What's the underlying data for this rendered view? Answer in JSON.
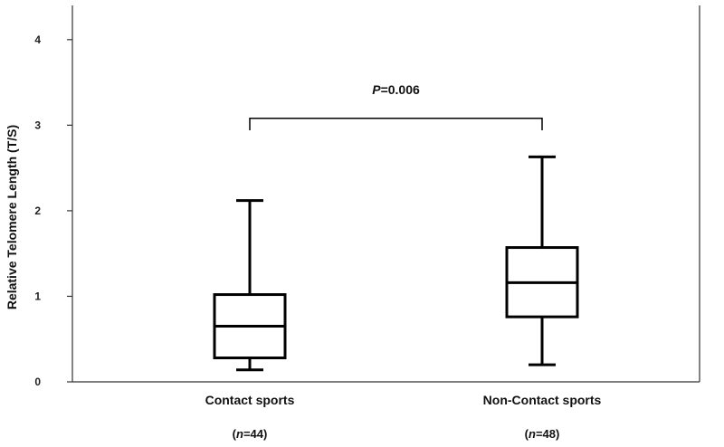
{
  "chart_data": {
    "type": "boxplot",
    "title": "",
    "xlabel": "",
    "ylabel": "Relative Telomere Length (T/S)",
    "ylim": [
      0,
      4.4
    ],
    "yticks": [
      "0",
      "1",
      "2",
      "3",
      "4"
    ],
    "grid": false,
    "groups": [
      {
        "label": "Contact sports",
        "n_prefix": "(",
        "n_symbol": "n",
        "n_value": "=44)",
        "whisker_low": 0.14,
        "q1": 0.28,
        "median": 0.65,
        "q3": 1.02,
        "whisker_high": 2.12
      },
      {
        "label": "Non-Contact sports",
        "n_prefix": "(",
        "n_symbol": "n",
        "n_value": "=48)",
        "whisker_low": 0.2,
        "q1": 0.76,
        "median": 1.16,
        "q3": 1.57,
        "whisker_high": 2.63
      }
    ],
    "annotation": {
      "symbol": "P",
      "text": "=0.006",
      "bracket_y": 3.08,
      "tick_bottom": 2.94
    }
  }
}
